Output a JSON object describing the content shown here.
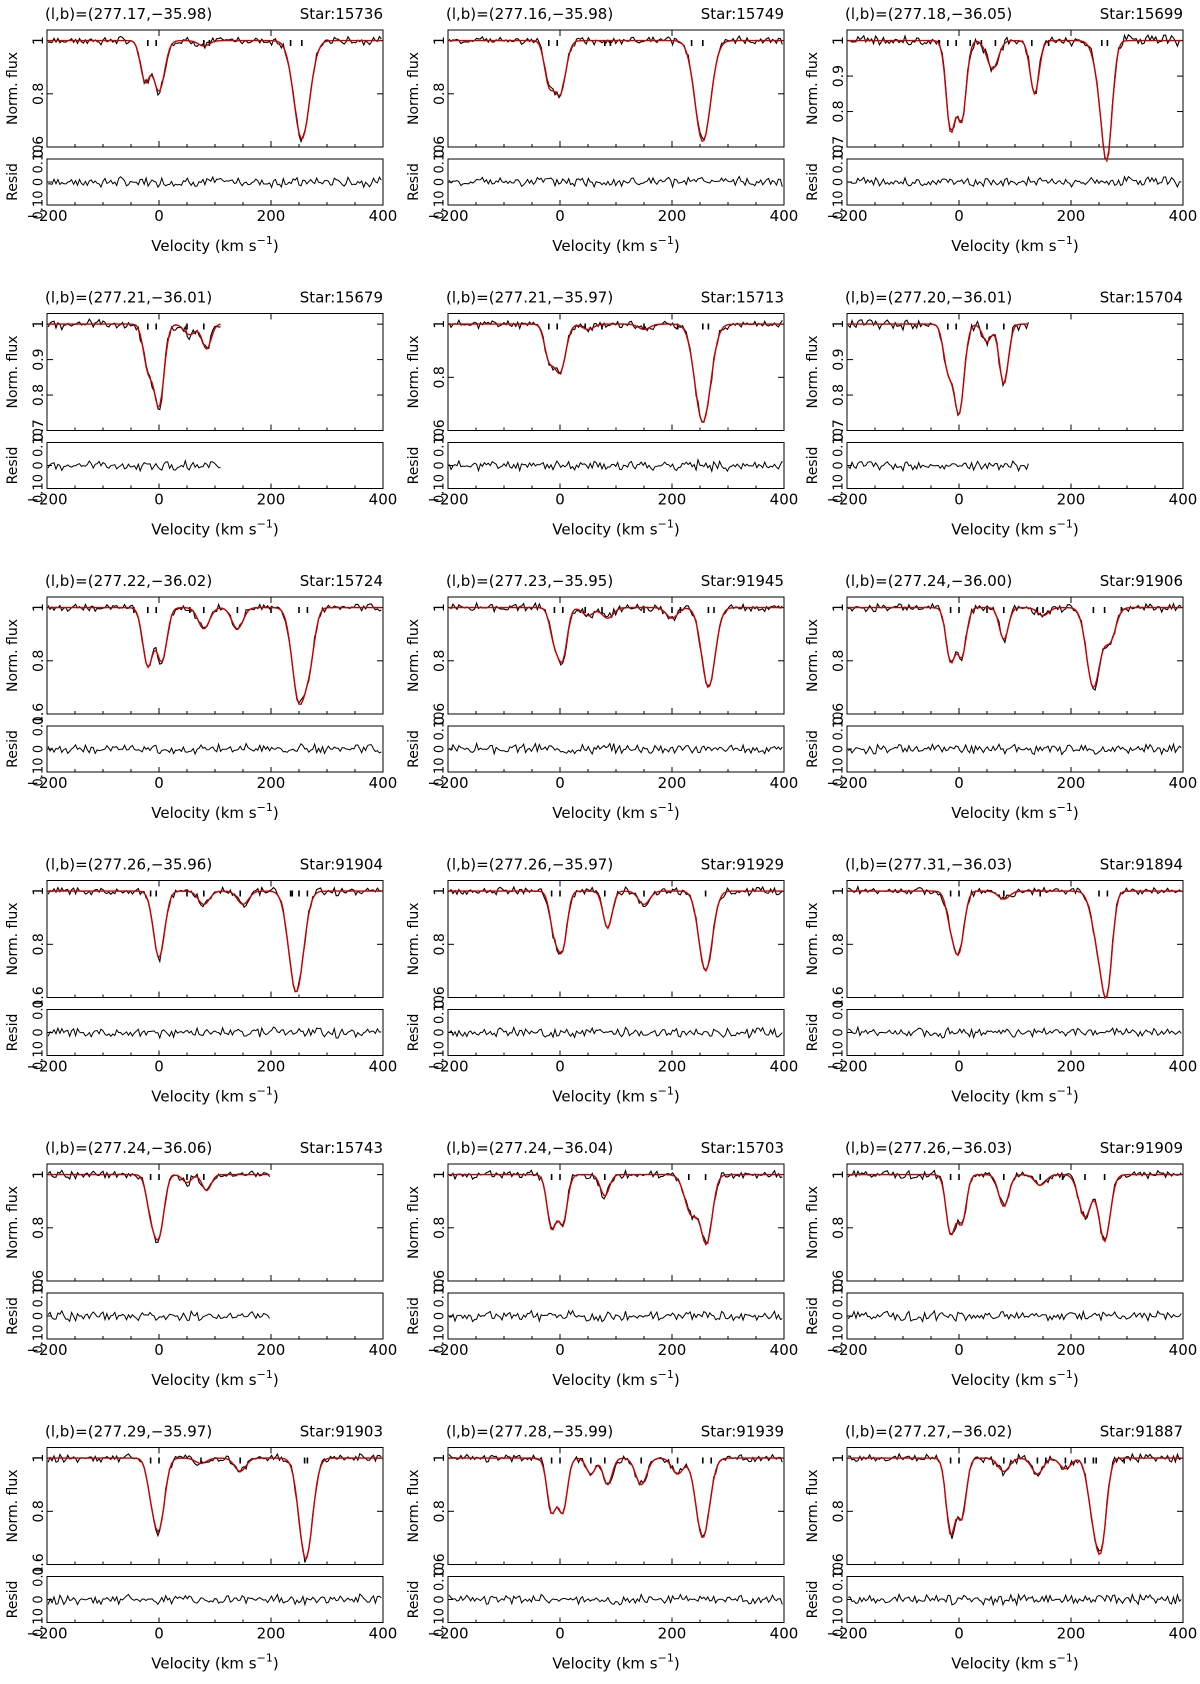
{
  "shared": {
    "ylabel_top": "Norm. flux",
    "ylabel_bottom": "Resid",
    "xlabel_main": "Velocity (km s",
    "xlabel_sup": "−1",
    "xlabel_close": ")",
    "xlim": [
      -200,
      400
    ],
    "resid_ylim": [
      -0.1,
      0.1
    ],
    "x_ticks": [
      "−200",
      "0",
      "200",
      "400"
    ],
    "data_color": "#000000",
    "model_color": "#cc0000"
  },
  "chart_data": [
    {
      "type": "line",
      "label": "(l,b)=(277.17,−35.98)",
      "star": "Star:15736",
      "ylim": [
        0.6,
        1.04
      ],
      "y_ticks": [
        "0.6",
        "0.8",
        "1"
      ],
      "resid_ticks": [
        "0.10",
        "0",
        "0.10"
      ],
      "xmax": 400,
      "ticks": [
        -20,
        -5,
        80,
        90,
        235,
        255
      ],
      "components": [
        {
          "v": -25,
          "d": 0.15,
          "w": 8
        },
        {
          "v": 0,
          "d": 0.19,
          "w": 10
        },
        {
          "v": 80,
          "d": 0.02,
          "w": 10
        },
        {
          "v": 255,
          "d": 0.37,
          "w": 14
        }
      ]
    },
    {
      "type": "line",
      "label": "(l,b)=(277.16,−35.98)",
      "star": "Star:15749",
      "ylim": [
        0.6,
        1.04
      ],
      "y_ticks": [
        "0.6",
        "0.8",
        "1"
      ],
      "resid_ticks": [
        "0.10",
        "0",
        "0.10"
      ],
      "xmax": 400,
      "ticks": [
        -20,
        -5,
        80,
        90,
        235,
        255
      ],
      "components": [
        {
          "v": -20,
          "d": 0.15,
          "w": 8
        },
        {
          "v": 0,
          "d": 0.2,
          "w": 10
        },
        {
          "v": 255,
          "d": 0.38,
          "w": 14
        }
      ]
    },
    {
      "type": "line",
      "label": "(l,b)=(277.18,−36.05)",
      "star": "Star:15699",
      "ylim": [
        0.7,
        1.03
      ],
      "y_ticks": [
        "0.7",
        "0.8",
        "0.9",
        "1"
      ],
      "resid_ticks": [
        "0.10",
        "0",
        "0.10"
      ],
      "xmax": 400,
      "ticks": [
        -35,
        -20,
        -5,
        20,
        40,
        65,
        130,
        160,
        255,
        265
      ],
      "components": [
        {
          "v": -15,
          "d": 0.25,
          "w": 8
        },
        {
          "v": 5,
          "d": 0.22,
          "w": 8
        },
        {
          "v": 60,
          "d": 0.08,
          "w": 10
        },
        {
          "v": 135,
          "d": 0.15,
          "w": 8
        },
        {
          "v": 255,
          "d": 0.12,
          "w": 12
        },
        {
          "v": 265,
          "d": 0.25,
          "w": 9
        }
      ]
    },
    {
      "type": "line",
      "label": "(l,b)=(277.21,−36.01)",
      "star": "Star:15679",
      "ylim": [
        0.7,
        1.03
      ],
      "y_ticks": [
        "0.7",
        "0.8",
        "0.9",
        "1"
      ],
      "resid_ticks": [
        "0.10",
        "0",
        "0.10"
      ],
      "xmax": 110,
      "ticks": [
        -20,
        -5,
        50,
        80
      ],
      "components": [
        {
          "v": -20,
          "d": 0.12,
          "w": 8
        },
        {
          "v": 0,
          "d": 0.23,
          "w": 9
        },
        {
          "v": 55,
          "d": 0.03,
          "w": 10
        },
        {
          "v": 85,
          "d": 0.07,
          "w": 8
        }
      ]
    },
    {
      "type": "line",
      "label": "(l,b)=(277.21,−35.97)",
      "star": "Star:15713",
      "ylim": [
        0.6,
        1.04
      ],
      "y_ticks": [
        "0.6",
        "0.8",
        "1"
      ],
      "resid_ticks": [
        "0.10",
        "0",
        "0.10"
      ],
      "xmax": 400,
      "ticks": [
        -20,
        -5,
        45,
        75,
        150,
        210,
        255,
        265
      ],
      "components": [
        {
          "v": -20,
          "d": 0.12,
          "w": 8
        },
        {
          "v": 0,
          "d": 0.18,
          "w": 10
        },
        {
          "v": 50,
          "d": 0.02,
          "w": 10
        },
        {
          "v": 150,
          "d": 0.02,
          "w": 10
        },
        {
          "v": 255,
          "d": 0.37,
          "w": 14
        }
      ]
    },
    {
      "type": "line",
      "label": "(l,b)=(277.20,−36.01)",
      "star": "Star:15704",
      "ylim": [
        0.7,
        1.03
      ],
      "y_ticks": [
        "0.7",
        "0.8",
        "0.9",
        "1"
      ],
      "resid_ticks": [
        "0.10",
        "0",
        "0.10"
      ],
      "xmax": 125,
      "ticks": [
        -20,
        -5,
        50,
        80
      ],
      "components": [
        {
          "v": -20,
          "d": 0.12,
          "w": 8
        },
        {
          "v": 0,
          "d": 0.25,
          "w": 9
        },
        {
          "v": 50,
          "d": 0.05,
          "w": 8
        },
        {
          "v": 80,
          "d": 0.17,
          "w": 8
        }
      ]
    },
    {
      "type": "line",
      "label": "(l,b)=(277.22,−36.02)",
      "star": "Star:15724",
      "ylim": [
        0.6,
        1.04
      ],
      "y_ticks": [
        "0.6",
        "0.8",
        "1"
      ],
      "resid_ticks": [
        "0.1",
        "0",
        "0.10"
      ],
      "xmax": 400,
      "ticks": [
        -45,
        -20,
        -5,
        55,
        80,
        140,
        200,
        250,
        265
      ],
      "components": [
        {
          "v": -20,
          "d": 0.22,
          "w": 9
        },
        {
          "v": 5,
          "d": 0.2,
          "w": 9
        },
        {
          "v": 80,
          "d": 0.08,
          "w": 10
        },
        {
          "v": 140,
          "d": 0.08,
          "w": 10
        },
        {
          "v": 250,
          "d": 0.35,
          "w": 12
        },
        {
          "v": 270,
          "d": 0.15,
          "w": 9
        }
      ]
    },
    {
      "type": "line",
      "label": "(l,b)=(277.23,−35.95)",
      "star": "Star:91945",
      "ylim": [
        0.6,
        1.04
      ],
      "y_ticks": [
        "0.6",
        "0.8",
        "1"
      ],
      "resid_ticks": [
        "0.10",
        "0",
        "0.10"
      ],
      "xmax": 400,
      "ticks": [
        -10,
        5,
        45,
        75,
        150,
        200,
        215,
        265,
        275
      ],
      "components": [
        {
          "v": -10,
          "d": 0.12,
          "w": 8
        },
        {
          "v": 5,
          "d": 0.18,
          "w": 8
        },
        {
          "v": 50,
          "d": 0.03,
          "w": 10
        },
        {
          "v": 85,
          "d": 0.04,
          "w": 10
        },
        {
          "v": 200,
          "d": 0.04,
          "w": 10
        },
        {
          "v": 265,
          "d": 0.3,
          "w": 12
        }
      ]
    },
    {
      "type": "line",
      "label": "(l,b)=(277.24,−36.00)",
      "star": "Star:91906",
      "ylim": [
        0.6,
        1.04
      ],
      "y_ticks": [
        "0.6",
        "0.8",
        "1"
      ],
      "resid_ticks": [
        "0.10",
        "0",
        "0.10"
      ],
      "xmax": 400,
      "ticks": [
        -15,
        0,
        50,
        80,
        140,
        150,
        240,
        260,
        290
      ],
      "components": [
        {
          "v": -15,
          "d": 0.2,
          "w": 8
        },
        {
          "v": 5,
          "d": 0.18,
          "w": 8
        },
        {
          "v": 80,
          "d": 0.12,
          "w": 8
        },
        {
          "v": 150,
          "d": 0.03,
          "w": 10
        },
        {
          "v": 240,
          "d": 0.3,
          "w": 12
        },
        {
          "v": 270,
          "d": 0.12,
          "w": 10
        }
      ]
    },
    {
      "type": "line",
      "label": "(l,b)=(277.26,−35.96)",
      "star": "Star:91904",
      "ylim": [
        0.6,
        1.04
      ],
      "y_ticks": [
        "0.6",
        "0.8",
        "1"
      ],
      "resid_ticks": [
        "0.1",
        "0",
        "0.10"
      ],
      "xmax": 400,
      "ticks": [
        -15,
        -5,
        50,
        80,
        145,
        235,
        238,
        250,
        265
      ],
      "components": [
        {
          "v": 0,
          "d": 0.25,
          "w": 10
        },
        {
          "v": 80,
          "d": 0.05,
          "w": 10
        },
        {
          "v": 150,
          "d": 0.05,
          "w": 10
        },
        {
          "v": 245,
          "d": 0.38,
          "w": 13
        }
      ]
    },
    {
      "type": "line",
      "label": "(l,b)=(277.26,−35.97)",
      "star": "Star:91929",
      "ylim": [
        0.6,
        1.04
      ],
      "y_ticks": [
        "0.6",
        "0.8",
        "1"
      ],
      "resid_ticks": [
        "0.10",
        "0",
        "0.10"
      ],
      "xmax": 400,
      "ticks": [
        -15,
        0,
        80,
        150,
        260
      ],
      "components": [
        {
          "v": -10,
          "d": 0.15,
          "w": 8
        },
        {
          "v": 5,
          "d": 0.2,
          "w": 8
        },
        {
          "v": 85,
          "d": 0.14,
          "w": 8
        },
        {
          "v": 150,
          "d": 0.05,
          "w": 10
        },
        {
          "v": 260,
          "d": 0.3,
          "w": 12
        }
      ]
    },
    {
      "type": "line",
      "label": "(l,b)=(277.31,−36.03)",
      "star": "Star:91894",
      "ylim": [
        0.6,
        1.04
      ],
      "y_ticks": [
        "0.6",
        "0.8",
        "1"
      ],
      "resid_ticks": [
        "0.1",
        "0",
        "0.10"
      ],
      "xmax": 400,
      "ticks": [
        -15,
        0,
        80,
        145,
        250,
        265
      ],
      "components": [
        {
          "v": -15,
          "d": 0.1,
          "w": 8
        },
        {
          "v": 0,
          "d": 0.22,
          "w": 9
        },
        {
          "v": 80,
          "d": 0.03,
          "w": 10
        },
        {
          "v": 250,
          "d": 0.2,
          "w": 12
        },
        {
          "v": 265,
          "d": 0.3,
          "w": 9
        }
      ]
    },
    {
      "type": "line",
      "label": "(l,b)=(277.24,−36.06)",
      "star": "Star:15743",
      "ylim": [
        0.6,
        1.04
      ],
      "y_ticks": [
        "0.6",
        "0.8",
        "1"
      ],
      "resid_ticks": [
        "0.10",
        "0",
        "0.10"
      ],
      "xmax": 200,
      "ticks": [
        -15,
        0,
        50,
        80
      ],
      "components": [
        {
          "v": -15,
          "d": 0.12,
          "w": 8
        },
        {
          "v": 0,
          "d": 0.22,
          "w": 9
        },
        {
          "v": 50,
          "d": 0.03,
          "w": 8
        },
        {
          "v": 85,
          "d": 0.06,
          "w": 8
        }
      ]
    },
    {
      "type": "line",
      "label": "(l,b)=(277.24,−36.04)",
      "star": "Star:15703",
      "ylim": [
        0.6,
        1.04
      ],
      "y_ticks": [
        "0.6",
        "0.8",
        "1"
      ],
      "resid_ticks": [
        "0.10",
        "0",
        "0.10"
      ],
      "xmax": 400,
      "ticks": [
        -15,
        0,
        80,
        230,
        260
      ],
      "components": [
        {
          "v": -15,
          "d": 0.2,
          "w": 8
        },
        {
          "v": 5,
          "d": 0.18,
          "w": 8
        },
        {
          "v": 80,
          "d": 0.08,
          "w": 8
        },
        {
          "v": 235,
          "d": 0.15,
          "w": 12
        },
        {
          "v": 262,
          "d": 0.25,
          "w": 10
        }
      ]
    },
    {
      "type": "line",
      "label": "(l,b)=(277.26,−36.03)",
      "star": "Star:91909",
      "ylim": [
        0.6,
        1.04
      ],
      "y_ticks": [
        "0.6",
        "0.8",
        "1"
      ],
      "resid_ticks": [
        "0.10",
        "0",
        "0.10"
      ],
      "xmax": 400,
      "ticks": [
        -15,
        0,
        80,
        145,
        185,
        225,
        260
      ],
      "components": [
        {
          "v": -15,
          "d": 0.22,
          "w": 8
        },
        {
          "v": 5,
          "d": 0.18,
          "w": 8
        },
        {
          "v": 80,
          "d": 0.12,
          "w": 9
        },
        {
          "v": 145,
          "d": 0.04,
          "w": 10
        },
        {
          "v": 225,
          "d": 0.16,
          "w": 11
        },
        {
          "v": 260,
          "d": 0.25,
          "w": 10
        }
      ]
    },
    {
      "type": "line",
      "label": "(l,b)=(277.29,−35.97)",
      "star": "Star:91903",
      "ylim": [
        0.6,
        1.04
      ],
      "y_ticks": [
        "0.6",
        "0.8",
        "1"
      ],
      "resid_ticks": [
        "0.1",
        "0",
        "0.10"
      ],
      "xmax": 400,
      "ticks": [
        -15,
        0,
        75,
        145,
        260,
        265
      ],
      "components": [
        {
          "v": -15,
          "d": 0.08,
          "w": 8
        },
        {
          "v": 0,
          "d": 0.26,
          "w": 10
        },
        {
          "v": 75,
          "d": 0.02,
          "w": 10
        },
        {
          "v": 145,
          "d": 0.05,
          "w": 10
        },
        {
          "v": 262,
          "d": 0.38,
          "w": 12
        }
      ]
    },
    {
      "type": "line",
      "label": "(l,b)=(277.28,−35.99)",
      "star": "Star:91939",
      "ylim": [
        0.6,
        1.04
      ],
      "y_ticks": [
        "0.6",
        "0.8",
        "1"
      ],
      "resid_ticks": [
        "0.10",
        "0",
        "0.10"
      ],
      "xmax": 400,
      "ticks": [
        -15,
        0,
        55,
        80,
        145,
        210,
        255,
        270
      ],
      "components": [
        {
          "v": -15,
          "d": 0.2,
          "w": 8
        },
        {
          "v": 5,
          "d": 0.2,
          "w": 8
        },
        {
          "v": 55,
          "d": 0.06,
          "w": 8
        },
        {
          "v": 85,
          "d": 0.1,
          "w": 8
        },
        {
          "v": 145,
          "d": 0.1,
          "w": 10
        },
        {
          "v": 210,
          "d": 0.06,
          "w": 10
        },
        {
          "v": 255,
          "d": 0.3,
          "w": 12
        }
      ]
    },
    {
      "type": "line",
      "label": "(l,b)=(277.27,−36.02)",
      "star": "Star:91887",
      "ylim": [
        0.6,
        1.04
      ],
      "y_ticks": [
        "0.6",
        "0.8",
        "1"
      ],
      "resid_ticks": [
        "0.10",
        "0",
        "0.10"
      ],
      "xmax": 400,
      "ticks": [
        -15,
        0,
        80,
        140,
        155,
        190,
        225,
        240,
        245,
        295
      ],
      "components": [
        {
          "v": -15,
          "d": 0.28,
          "w": 8
        },
        {
          "v": 5,
          "d": 0.22,
          "w": 8
        },
        {
          "v": 80,
          "d": 0.05,
          "w": 10
        },
        {
          "v": 140,
          "d": 0.06,
          "w": 10
        },
        {
          "v": 190,
          "d": 0.04,
          "w": 10
        },
        {
          "v": 240,
          "d": 0.2,
          "w": 10
        },
        {
          "v": 255,
          "d": 0.28,
          "w": 9
        }
      ]
    }
  ]
}
